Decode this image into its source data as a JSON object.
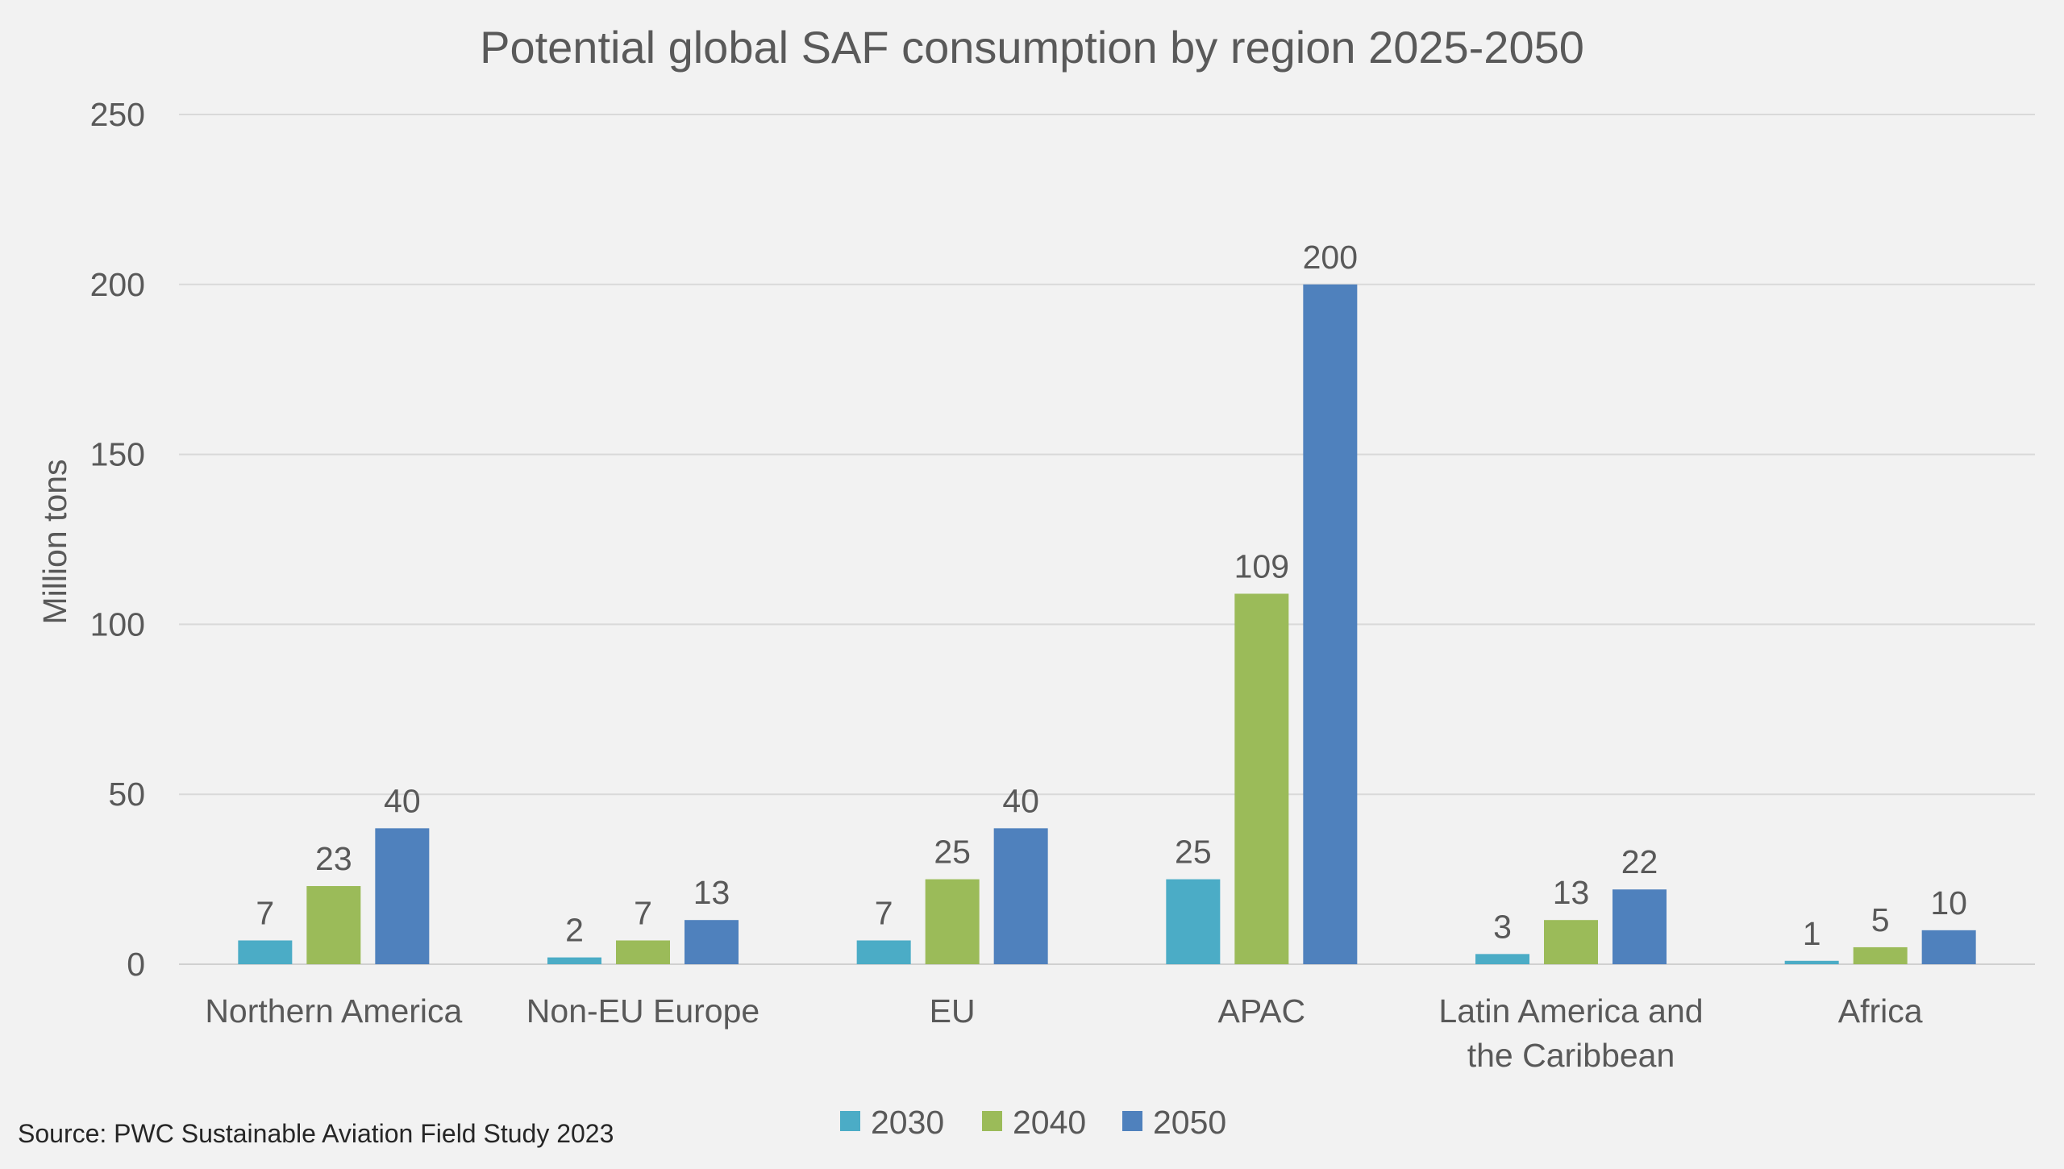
{
  "source": "Source: PWC Sustainable Aviation Field Study 2023",
  "chart_data": {
    "type": "bar",
    "title": "Potential global SAF consumption by region 2025-2050",
    "xlabel": "",
    "ylabel": "Million tons",
    "ylim": [
      0,
      250
    ],
    "yticks": [
      0,
      50,
      100,
      150,
      200,
      250
    ],
    "grid": true,
    "legend_position": "bottom",
    "categories": [
      [
        "Northern America"
      ],
      [
        "Non-EU Europe"
      ],
      [
        "EU"
      ],
      [
        "APAC"
      ],
      [
        "Latin America and",
        "the Caribbean"
      ],
      [
        "Africa"
      ]
    ],
    "series": [
      {
        "name": "2030",
        "color": "#4bacc6",
        "values": [
          7,
          2,
          7,
          25,
          3,
          1
        ]
      },
      {
        "name": "2040",
        "color": "#9bbb59",
        "values": [
          23,
          7,
          25,
          109,
          13,
          5
        ]
      },
      {
        "name": "2050",
        "color": "#4f81bd",
        "values": [
          40,
          13,
          40,
          200,
          22,
          10
        ]
      }
    ]
  }
}
